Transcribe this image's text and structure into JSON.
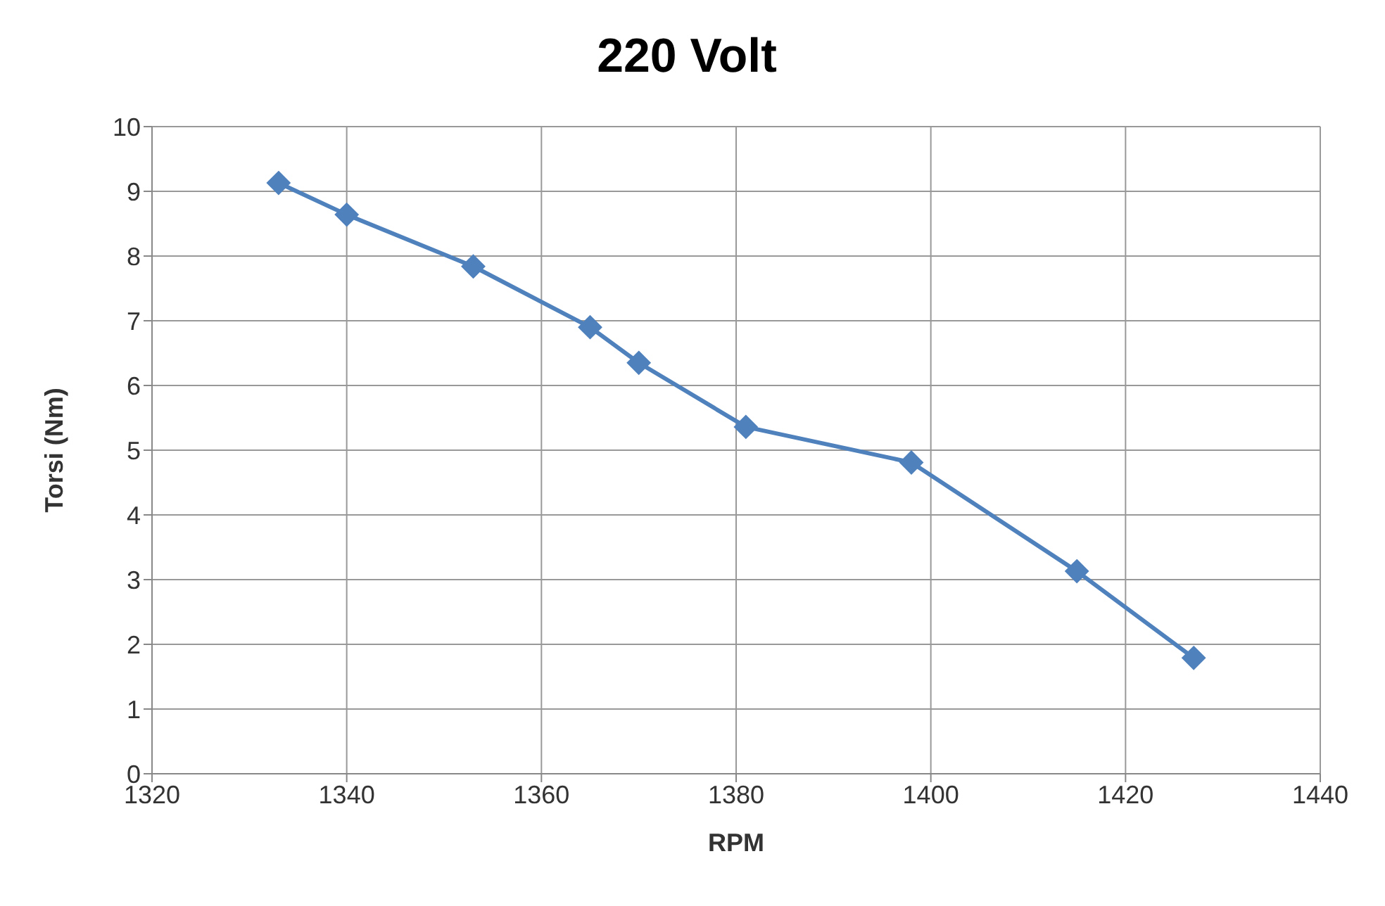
{
  "chart_data": {
    "type": "line",
    "title": "220 Volt",
    "xlabel": "RPM",
    "ylabel": "Torsi (Nm)",
    "x": [
      1333,
      1340,
      1353,
      1365,
      1370,
      1381,
      1398,
      1415,
      1427
    ],
    "series": [
      {
        "color": "#4f81bd",
        "values": [
          9.13,
          8.64,
          7.84,
          6.9,
          6.35,
          5.36,
          4.81,
          3.13,
          1.79
        ]
      }
    ],
    "xlim": [
      1320,
      1440
    ],
    "xticks": [
      1320,
      1340,
      1360,
      1380,
      1400,
      1420,
      1440
    ],
    "ylim": [
      0,
      10
    ],
    "yticks": [
      0,
      1,
      2,
      3,
      4,
      5,
      6,
      7,
      8,
      9,
      10
    ],
    "grid": true,
    "marker": "diamond",
    "line_style": "solid"
  }
}
